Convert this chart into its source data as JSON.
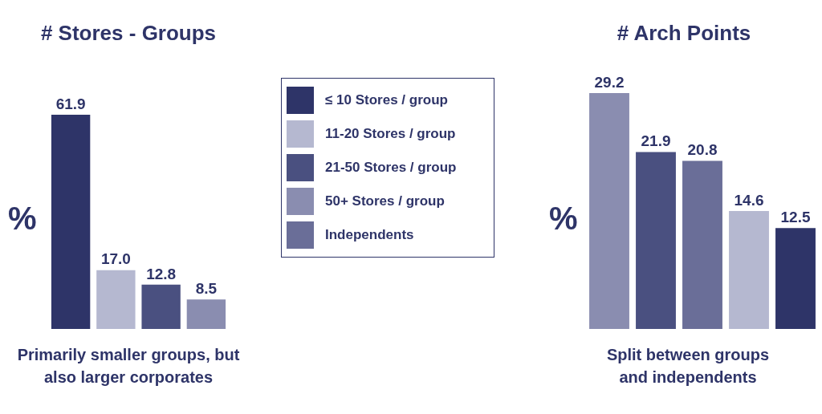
{
  "chart_data": [
    {
      "type": "bar",
      "title": "# Stores - Groups",
      "ylabel": "%",
      "categories": [
        null
      ],
      "legend": "right",
      "annotations": [
        "Primarily smaller groups, but also larger corporates"
      ],
      "series": [
        {
          "name": "≤ 10 Stores / group",
          "color": "#2e3468",
          "values": [
            61.9
          ],
          "value_labels": [
            "61.9"
          ]
        },
        {
          "name": "11-20 Stores / group",
          "color": "#b5b8d0",
          "values": [
            17.0
          ],
          "value_labels": [
            "17.0"
          ]
        },
        {
          "name": "21-50 Stores / group",
          "color": "#4a5080",
          "values": [
            12.8
          ],
          "value_labels": [
            "12.8"
          ]
        },
        {
          "name": "50+ Stores / group",
          "color": "#8a8db0",
          "values": [
            8.5
          ],
          "value_labels": [
            "8.5"
          ]
        }
      ]
    },
    {
      "type": "bar",
      "title": "# Arch Points",
      "ylabel": "%",
      "categories": [
        null
      ],
      "legend": "left",
      "annotations": [
        "Split between groups and independents"
      ],
      "series": [
        {
          "name": "50+ Stores / group",
          "color": "#8a8db0",
          "values": [
            29.2
          ],
          "value_labels": [
            "29.2"
          ]
        },
        {
          "name": "21-50 Stores / group",
          "color": "#4a5080",
          "values": [
            21.9
          ],
          "value_labels": [
            "21.9"
          ]
        },
        {
          "name": "Independents",
          "color": "#6a6e98",
          "values": [
            20.8
          ],
          "value_labels": [
            "20.8"
          ]
        },
        {
          "name": "11-20 Stores / group",
          "color": "#b5b8d0",
          "values": [
            14.6
          ],
          "value_labels": [
            "14.6"
          ]
        },
        {
          "name": "≤ 10 Stores / group",
          "color": "#2e3468",
          "values": [
            12.5
          ],
          "value_labels": [
            "12.5"
          ]
        }
      ]
    }
  ]
}
